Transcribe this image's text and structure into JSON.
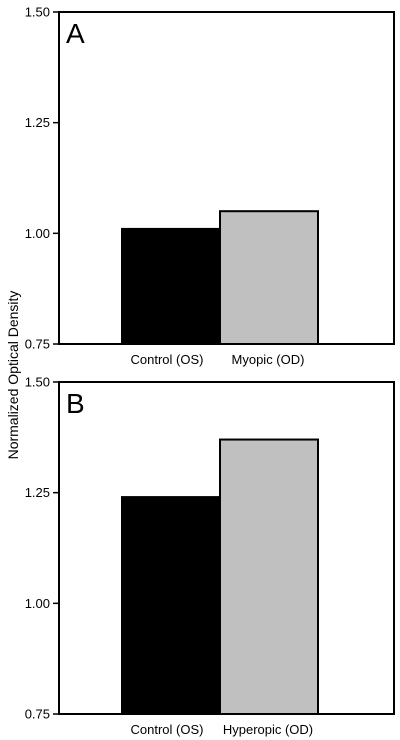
{
  "figure": {
    "ylabel": "Normalized Optical Density"
  },
  "chart_data": [
    {
      "type": "bar",
      "panel_label": "A",
      "categories": [
        "Control (OS)",
        "Myopic (OD)"
      ],
      "values": [
        1.01,
        1.05
      ],
      "colors": [
        "#000000",
        "#c0c0c0"
      ],
      "ylim": [
        0.75,
        1.5
      ],
      "yticks": [
        "0.75",
        "1.00",
        "1.25",
        "1.50"
      ],
      "ytick_values": [
        0.75,
        1.0,
        1.25,
        1.5
      ],
      "grid": false
    },
    {
      "type": "bar",
      "panel_label": "B",
      "categories": [
        "Control (OS)",
        "Hyperopic (OD)"
      ],
      "values": [
        1.24,
        1.37
      ],
      "colors": [
        "#000000",
        "#c0c0c0"
      ],
      "ylim": [
        0.75,
        1.5
      ],
      "yticks": [
        "0.75",
        "1.00",
        "1.25",
        "1.50"
      ],
      "ytick_values": [
        0.75,
        1.0,
        1.25,
        1.5
      ],
      "grid": false
    }
  ]
}
